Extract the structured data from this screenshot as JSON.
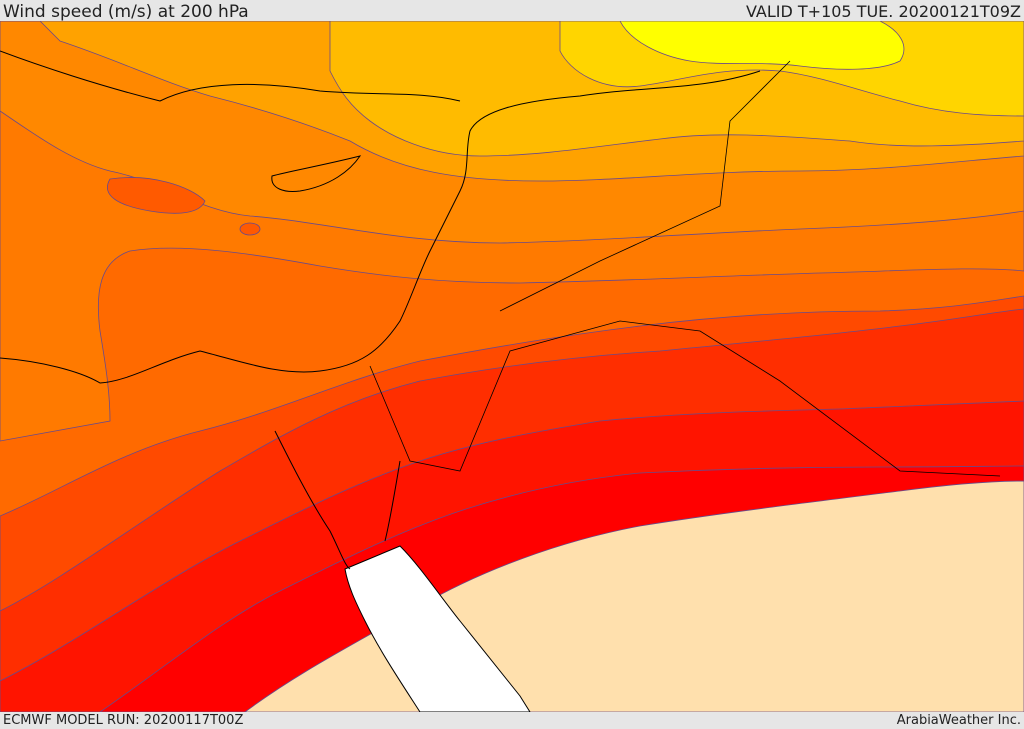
{
  "header": {
    "title": "Wind speed (m/s) at 200 hPa",
    "valid": "VALID T+105 TUE. 20200121T09Z"
  },
  "footer": {
    "model_run": "ECMWF MODEL RUN: 20200117T00Z",
    "credit": "ArabiaWeather Inc."
  },
  "map": {
    "colors": {
      "band_yellow": "#ffff00",
      "band_gold": "#ffd500",
      "band_amber": "#ffbb00",
      "band_orange_light": "#ffa200",
      "band_orange": "#ff8800",
      "band_orange_dark": "#ff6a00",
      "band_red_orange": "#ff4a00",
      "band_red_light": "#ff2e00",
      "band_red": "#ff1400",
      "band_pure_red": "#ff0000",
      "low_wind_fill": "#ffe0ad",
      "sea": "#ffffff",
      "contour": "#6a4a8a",
      "coastline": "#000000"
    }
  }
}
